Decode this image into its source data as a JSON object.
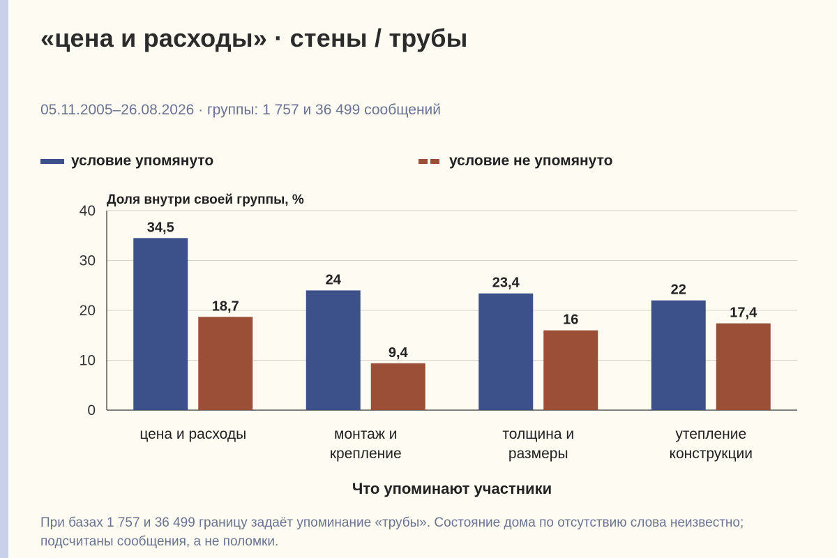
{
  "header": {
    "title": "«цена и расходы» · стены / трубы",
    "subtitle": "05.11.2005–26.08.2026 · группы: 1 757 и 36 499 сообщений"
  },
  "legend": [
    {
      "label": "условие упомянуто",
      "color": "#3c5089",
      "style": "solid"
    },
    {
      "label": "условие не упомянуто",
      "color": "#9a4f36",
      "style": "dashed"
    }
  ],
  "chart_data": {
    "type": "bar",
    "ylabel": "Доля внутри своей группы, %",
    "xlabel": "Что упоминают участники",
    "ylim": [
      0,
      40
    ],
    "yticks": [
      0,
      10,
      20,
      30,
      40
    ],
    "grid": true,
    "legend_position": "top",
    "categories": [
      [
        "цена и расходы"
      ],
      [
        "монтаж и",
        "крепление"
      ],
      [
        "толщина и",
        "размеры"
      ],
      [
        "утепление",
        "конструкции"
      ]
    ],
    "series": [
      {
        "name": "условие упомянуто",
        "color": "#3c5089",
        "values": [
          34.5,
          24,
          23.4,
          22
        ],
        "labels": [
          "34,5",
          "24",
          "23,4",
          "22"
        ]
      },
      {
        "name": "условие не упомянуто",
        "color": "#9a4f36",
        "values": [
          18.7,
          9.4,
          16,
          17.4
        ],
        "labels": [
          "18,7",
          "9,4",
          "16",
          "17,4"
        ]
      }
    ]
  },
  "footnote": "При базах 1 757 и 36 499 границу задаёт упоминание «трубы». Состояние дома по отсутствию слова неизвестно; подсчитаны сообщения, а не поломки."
}
